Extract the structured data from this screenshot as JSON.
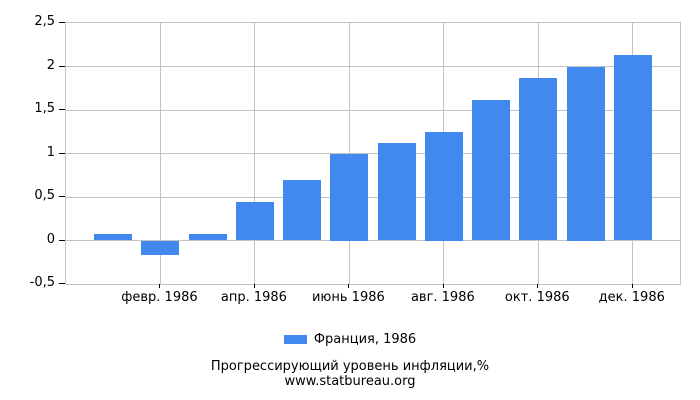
{
  "chart_data": {
    "type": "bar",
    "title": "Прогрессирующий уровень инфляции,%",
    "subtitle": "www.statbureau.org",
    "legend": "Франция, 1986",
    "bar_color": "#4189ee",
    "grid_color": "#c3c3c3",
    "grid": true,
    "legend_position": "bottom",
    "values": [
      0.07,
      -0.17,
      0.07,
      0.44,
      0.69,
      1.0,
      1.12,
      1.25,
      1.62,
      1.87,
      2.0,
      2.13
    ],
    "num_bars": 12,
    "x_tick_labels": [
      "февр. 1986",
      "апр. 1986",
      "июнь 1986",
      "авг. 1986",
      "окт. 1986",
      "дек. 1986"
    ],
    "x_tick_month_index": [
      2,
      4,
      6,
      8,
      10,
      12
    ],
    "y_tick_labels": [
      "-0,5",
      "0",
      "0,5",
      "1",
      "1,5",
      "2",
      "2,5"
    ],
    "y_tick_values": [
      -0.5,
      0,
      0.5,
      1,
      1.5,
      2,
      2.5
    ],
    "ylim": [
      -0.5,
      2.5
    ]
  }
}
